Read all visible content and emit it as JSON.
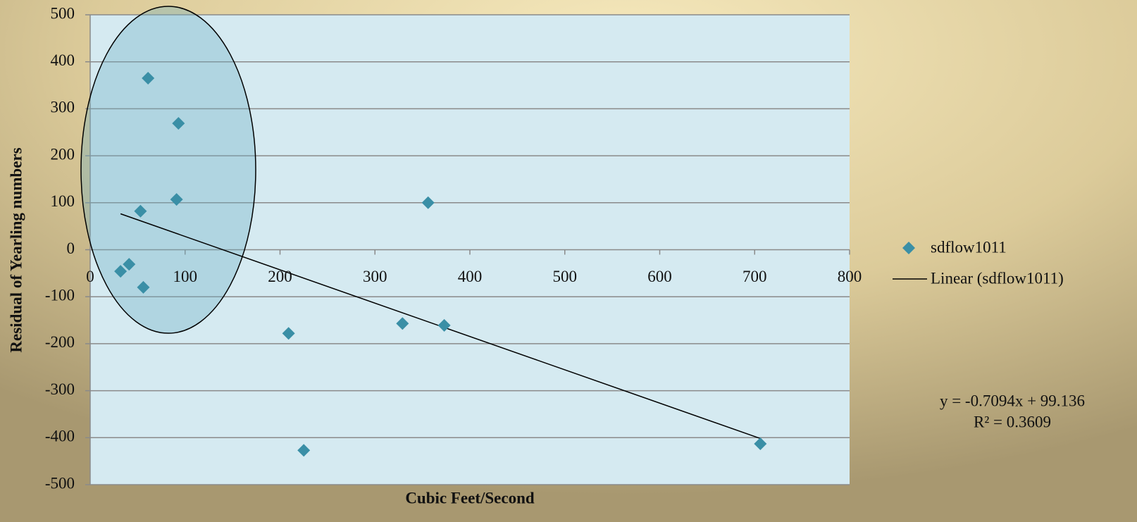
{
  "chart_data": {
    "type": "scatter",
    "x_label": "Cubic Feet/Second",
    "y_label": "Residual of Yearling numbers",
    "xlim": [
      0,
      800
    ],
    "xticks": [
      0,
      100,
      200,
      300,
      400,
      500,
      600,
      700,
      800
    ],
    "ylim": [
      -500,
      500
    ],
    "yticks": [
      -500,
      -400,
      -300,
      -200,
      -100,
      0,
      100,
      200,
      300,
      400,
      500
    ],
    "grid": true,
    "series": [
      {
        "name": "sdflow1011",
        "color": "#3a8fa6",
        "x": [
          61,
          93,
          91,
          53,
          32,
          41,
          56,
          209,
          225,
          329,
          373,
          356,
          706
        ],
        "values": [
          365,
          269,
          107,
          82,
          -46,
          -31,
          -80,
          -178,
          -427,
          -157,
          -161,
          100,
          -413
        ]
      }
    ],
    "trendline": {
      "name": "Linear (sdflow1011)",
      "slope": -0.7094,
      "intercept": 99.136,
      "equation": "y = -0.7094x + 99.136",
      "r2_label": "R² = 0.3609"
    }
  }
}
